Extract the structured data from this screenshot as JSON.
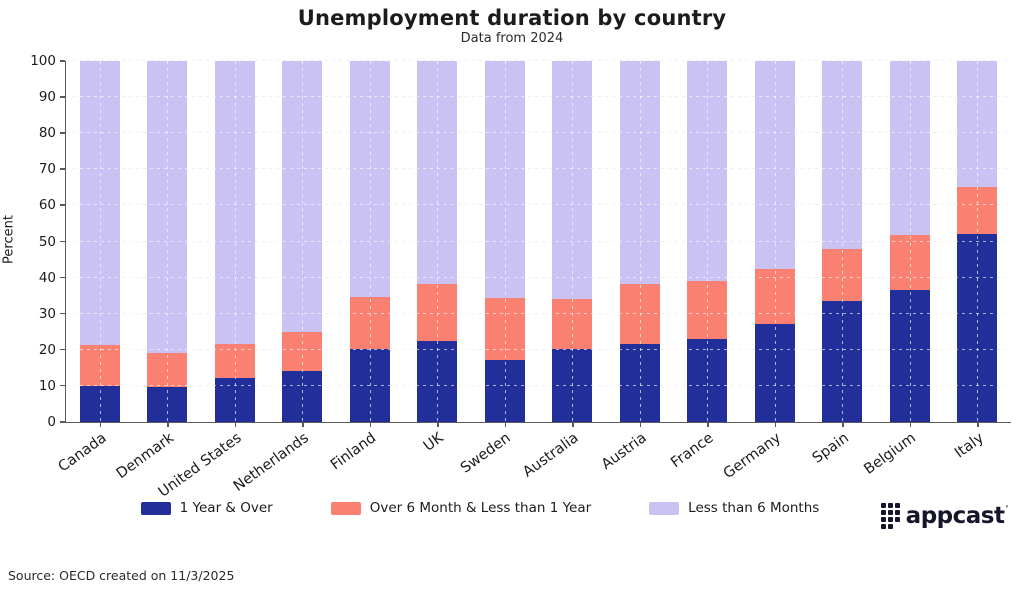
{
  "header": {
    "title": "Unemployment duration by country",
    "subtitle": "Data from 2024"
  },
  "footer": {
    "source": "Source: OECD created on 11/3/2025"
  },
  "logo": {
    "brand": "appcast",
    "trademark": "ʹ",
    "color": "#15152c",
    "dot_grid": [
      [
        1,
        1,
        1
      ],
      [
        1,
        1,
        1
      ],
      [
        1,
        1,
        1
      ],
      [
        1,
        1,
        0
      ]
    ]
  },
  "chart_data": {
    "type": "bar",
    "stacked": true,
    "title": "Unemployment duration by country",
    "subtitle": "Data from 2024",
    "xlabel": "",
    "ylabel": "Percent",
    "ylim": [
      0,
      100
    ],
    "ytick_step": 10,
    "yticks": [
      0,
      10,
      20,
      30,
      40,
      50,
      60,
      70,
      80,
      90,
      100
    ],
    "grid": "horizontal-dashed",
    "legend_position": "bottom",
    "categories": [
      "Canada",
      "Denmark",
      "United States",
      "Netherlands",
      "Finland",
      "UK",
      "Sweden",
      "Australia",
      "Austria",
      "France",
      "Germany",
      "Spain",
      "Belgium",
      "Italy"
    ],
    "series": [
      {
        "name": "1 Year & Over",
        "color": "#222f9b",
        "values": [
          10.0,
          9.6,
          12.1,
          14.2,
          20.2,
          22.3,
          17.3,
          20.1,
          21.5,
          23.1,
          27.2,
          33.4,
          36.5,
          52.0
        ]
      },
      {
        "name": "Over 6 Month & Less than 1 Year",
        "color": "#fa8072",
        "values": [
          11.2,
          9.6,
          9.4,
          10.7,
          14.4,
          16.0,
          17.1,
          14.0,
          16.6,
          15.9,
          15.2,
          14.6,
          15.4,
          13.0
        ]
      },
      {
        "name": "Less than 6 Months",
        "color": "#c9c2f2",
        "values": [
          78.8,
          80.8,
          78.5,
          75.1,
          65.4,
          61.7,
          65.6,
          65.9,
          61.9,
          61.0,
          57.6,
          52.0,
          48.1,
          35.0
        ]
      }
    ]
  }
}
